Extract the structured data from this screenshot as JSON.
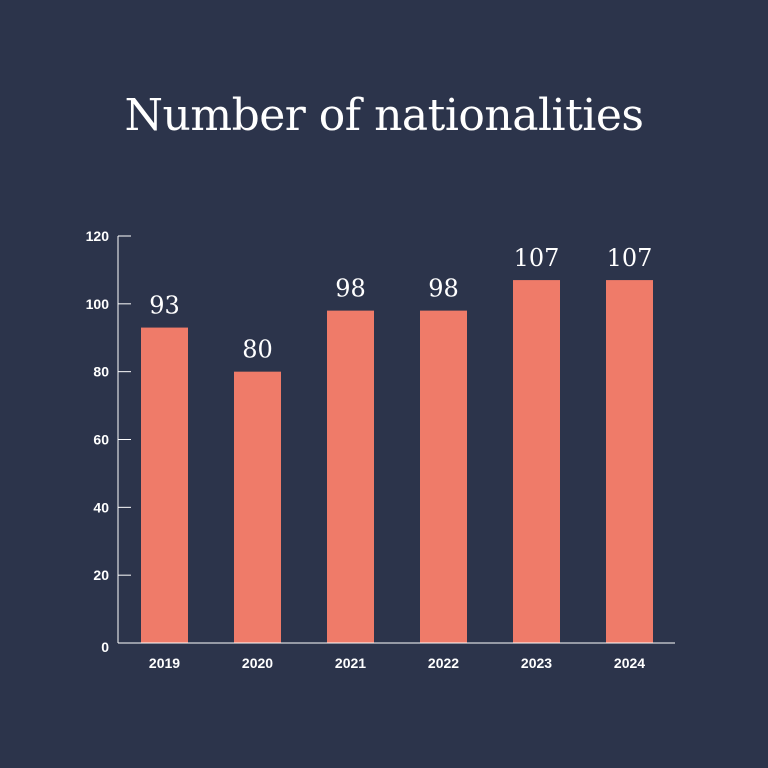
{
  "colors": {
    "background": "#2c344b",
    "bar": "#ef7b69",
    "text": "#ffffff",
    "axis": "#ffffff"
  },
  "chart_data": {
    "type": "bar",
    "title": "Number of nationalities",
    "categories": [
      "2019",
      "2020",
      "2021",
      "2022",
      "2023",
      "2024"
    ],
    "values": [
      93,
      80,
      98,
      98,
      107,
      107
    ],
    "data_labels": [
      "93",
      "80",
      "98",
      "98",
      "107",
      "107"
    ],
    "xlabel": "",
    "ylabel": "",
    "ylim": [
      0,
      120
    ],
    "yticks": [
      0,
      20,
      40,
      60,
      80,
      100,
      120
    ],
    "ytick_labels": [
      "0",
      "20",
      "40",
      "60",
      "80",
      "100",
      "120"
    ],
    "grid": false,
    "legend": "none"
  }
}
